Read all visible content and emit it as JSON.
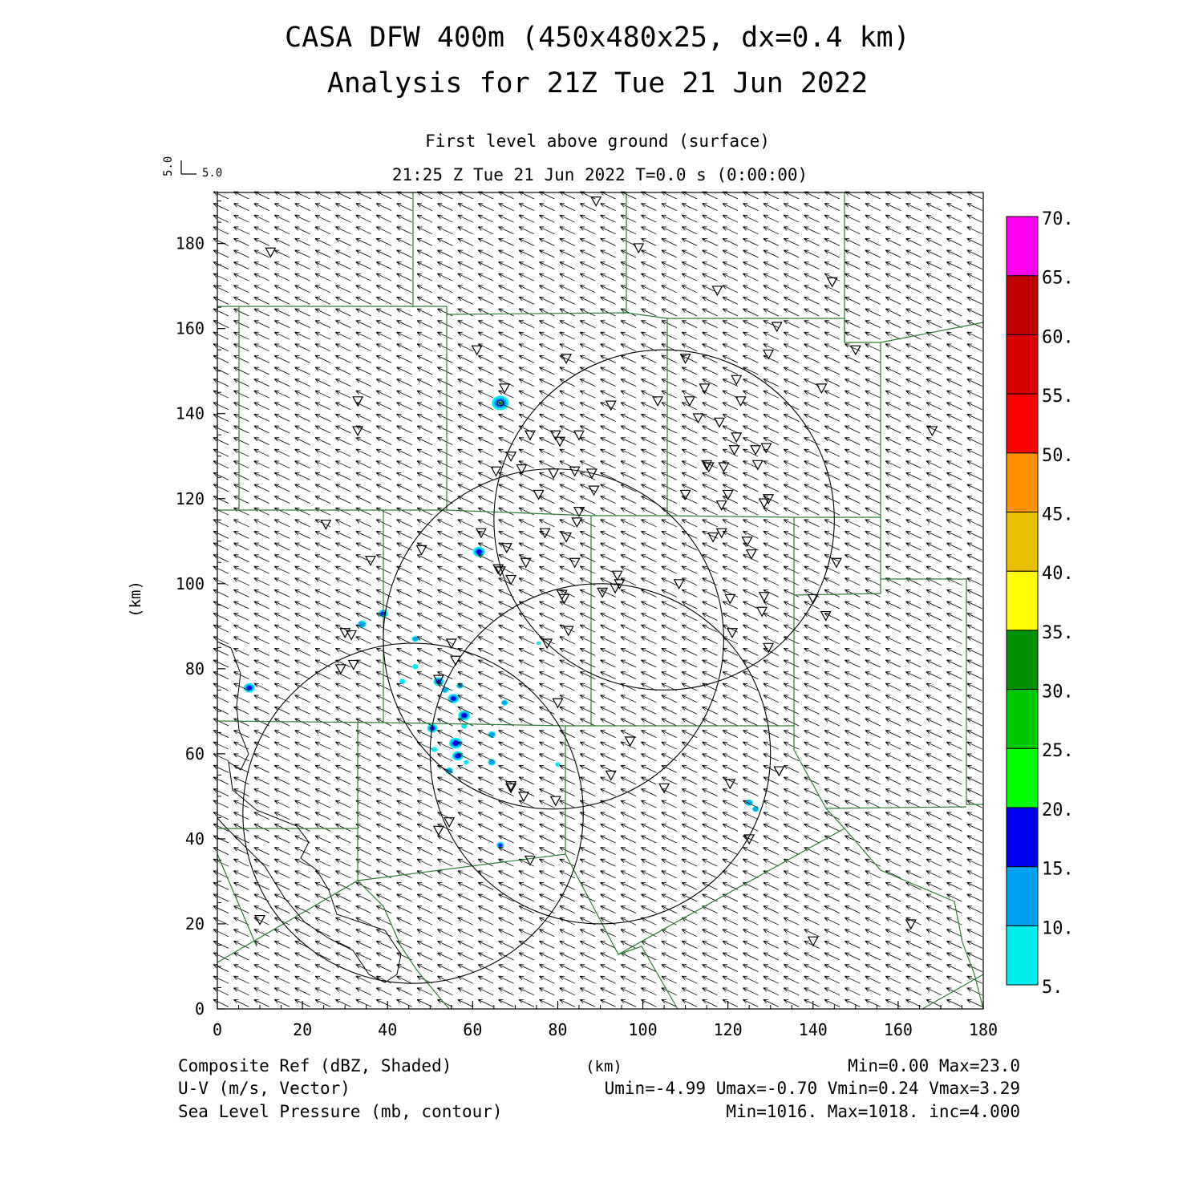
{
  "title": "CASA DFW 400m (450x480x25, dx=0.4 km)",
  "subtitle": "Analysis for 21Z Tue 21 Jun 2022",
  "level_label": "First level above ground (surface)",
  "time_label": "21:25 Z Tue 21 Jun 2022   T=0.0 s (0:00:00)",
  "vector_scale": {
    "u_label": "5.0",
    "v_label": "5.0"
  },
  "footer": {
    "left": [
      "Composite Ref (dBZ, Shaded)",
      "U-V (m/s, Vector)",
      "Sea Level Pressure (mb, contour)"
    ],
    "center": "(km)",
    "right": [
      "Min=0.00 Max=23.0",
      "Umin=-4.99 Umax=-0.70 Vmin=0.24 Vmax=3.29",
      "Min=1016. Max=1018. inc=4.000"
    ]
  },
  "chart_data": {
    "type": "heatmap",
    "xlabel": "(km)",
    "ylabel": "(km)",
    "xlim": [
      0,
      180
    ],
    "ylim": [
      0,
      192
    ],
    "xticks": [
      "0",
      "20",
      "40",
      "60",
      "80",
      "100",
      "120",
      "140",
      "160",
      "180"
    ],
    "yticks": [
      "0",
      "20",
      "40",
      "60",
      "80",
      "100",
      "120",
      "140",
      "160",
      "180"
    ],
    "colorbar": {
      "levels": [
        "5.",
        "10.",
        "15.",
        "20.",
        "25.",
        "30.",
        "35.",
        "40.",
        "45.",
        "50.",
        "55.",
        "60.",
        "65.",
        "70."
      ],
      "colors": [
        "#00eeee",
        "#00a0f0",
        "#0000f0",
        "#00ff00",
        "#00c800",
        "#009000",
        "#ffff00",
        "#e8c000",
        "#ff9000",
        "#ff0000",
        "#d80000",
        "#c00000",
        "#ff00f0"
      ]
    },
    "radar_rings_km": [
      {
        "center": [
          105,
          115
        ],
        "radius": 40
      },
      {
        "center": [
          79,
          87
        ],
        "radius": 40
      },
      {
        "center": [
          46,
          46
        ],
        "radius": 40
      },
      {
        "center": [
          90,
          60
        ],
        "radius": 40
      }
    ],
    "wind_vector": {
      "u": -3.6,
      "v": 1.7
    },
    "echoes": [
      {
        "x": 66.5,
        "y": 142.5,
        "r": 2.0,
        "peak": "#00ff00"
      },
      {
        "x": 61.5,
        "y": 107.5,
        "r": 1.4,
        "peak": "#0000f0"
      },
      {
        "x": 39.0,
        "y": 93.0,
        "r": 1.1,
        "peak": "#0000f0"
      },
      {
        "x": 34.0,
        "y": 90.5,
        "r": 1.0,
        "peak": "#00a0f0"
      },
      {
        "x": 7.5,
        "y": 75.5,
        "r": 1.3,
        "peak": "#0000f0"
      },
      {
        "x": 46.5,
        "y": 87.0,
        "r": 0.8,
        "peak": "#00a0f0"
      },
      {
        "x": 52.0,
        "y": 77.0,
        "r": 1.2,
        "peak": "#0000f0"
      },
      {
        "x": 55.5,
        "y": 73.0,
        "r": 1.3,
        "peak": "#0000f0"
      },
      {
        "x": 58.0,
        "y": 69.0,
        "r": 1.4,
        "peak": "#0000f0"
      },
      {
        "x": 50.5,
        "y": 66.0,
        "r": 1.2,
        "peak": "#0000f0"
      },
      {
        "x": 56.0,
        "y": 62.5,
        "r": 1.5,
        "peak": "#0000f0"
      },
      {
        "x": 56.5,
        "y": 59.5,
        "r": 1.3,
        "peak": "#0000f0"
      },
      {
        "x": 54.5,
        "y": 56.0,
        "r": 0.9,
        "peak": "#00a0f0"
      },
      {
        "x": 64.5,
        "y": 64.5,
        "r": 0.9,
        "peak": "#00a0f0"
      },
      {
        "x": 64.5,
        "y": 58.0,
        "r": 0.9,
        "peak": "#00a0f0"
      },
      {
        "x": 67.5,
        "y": 72.0,
        "r": 0.8,
        "peak": "#00a0f0"
      },
      {
        "x": 53.5,
        "y": 75.0,
        "r": 0.8,
        "peak": "#00a0f0"
      },
      {
        "x": 57.0,
        "y": 76.0,
        "r": 0.8,
        "peak": "#00a0f0"
      },
      {
        "x": 46.5,
        "y": 80.5,
        "r": 0.7,
        "peak": "#00eeee"
      },
      {
        "x": 43.5,
        "y": 77.0,
        "r": 0.7,
        "peak": "#00eeee"
      },
      {
        "x": 58.0,
        "y": 66.5,
        "r": 0.7,
        "peak": "#00eeee"
      },
      {
        "x": 51.0,
        "y": 61.0,
        "r": 0.7,
        "peak": "#00eeee"
      },
      {
        "x": 58.5,
        "y": 58.0,
        "r": 0.6,
        "peak": "#00eeee"
      },
      {
        "x": 80.0,
        "y": 57.5,
        "r": 0.6,
        "peak": "#00eeee"
      },
      {
        "x": 75.5,
        "y": 86.0,
        "r": 0.5,
        "peak": "#00eeee"
      },
      {
        "x": 66.5,
        "y": 38.5,
        "r": 0.9,
        "peak": "#0000f0"
      },
      {
        "x": 125.0,
        "y": 48.5,
        "r": 0.9,
        "peak": "#00a0f0"
      },
      {
        "x": 126.5,
        "y": 47.0,
        "r": 0.8,
        "peak": "#00a0f0"
      }
    ],
    "stations": [
      [
        89,
        190
      ],
      [
        12.5,
        178
      ],
      [
        99,
        179
      ],
      [
        117.5,
        169
      ],
      [
        144.5,
        171
      ],
      [
        131.5,
        160.5
      ],
      [
        150,
        155
      ],
      [
        61,
        155
      ],
      [
        82,
        153
      ],
      [
        110,
        153
      ],
      [
        129.5,
        154
      ],
      [
        67.5,
        146
      ],
      [
        114.5,
        146
      ],
      [
        122,
        148
      ],
      [
        111,
        143
      ],
      [
        142,
        146
      ],
      [
        33,
        143
      ],
      [
        92.5,
        142
      ],
      [
        103.5,
        143
      ],
      [
        123,
        143
      ],
      [
        33,
        136
      ],
      [
        73.5,
        135
      ],
      [
        85,
        135
      ],
      [
        79.5,
        135
      ],
      [
        80.5,
        133.5
      ],
      [
        113,
        139
      ],
      [
        118,
        138
      ],
      [
        122,
        134.5
      ],
      [
        126.5,
        131.5
      ],
      [
        129,
        132
      ],
      [
        168,
        136
      ],
      [
        121.5,
        131.5
      ],
      [
        69,
        130
      ],
      [
        71.5,
        127
      ],
      [
        65.5,
        126.5
      ],
      [
        79,
        126
      ],
      [
        84,
        126.5
      ],
      [
        88,
        126
      ],
      [
        115,
        128
      ],
      [
        115.5,
        127.5
      ],
      [
        119,
        127.5
      ],
      [
        127,
        128
      ],
      [
        88.5,
        122
      ],
      [
        75.5,
        121
      ],
      [
        110,
        121
      ],
      [
        120,
        121
      ],
      [
        129.5,
        120
      ],
      [
        128.5,
        119
      ],
      [
        118.5,
        118.5
      ],
      [
        85,
        117
      ],
      [
        84.5,
        114.5
      ],
      [
        25.5,
        114
      ],
      [
        62,
        112
      ],
      [
        77,
        112
      ],
      [
        82,
        111
      ],
      [
        116.5,
        111
      ],
      [
        118.5,
        112
      ],
      [
        124.5,
        110
      ],
      [
        48,
        108
      ],
      [
        68,
        108.5
      ],
      [
        125.5,
        107
      ],
      [
        36,
        105.5
      ],
      [
        72.5,
        105
      ],
      [
        66,
        103.5
      ],
      [
        66.5,
        103
      ],
      [
        84,
        105
      ],
      [
        94,
        102
      ],
      [
        69,
        101
      ],
      [
        94.5,
        100
      ],
      [
        93.5,
        99
      ],
      [
        108.5,
        100
      ],
      [
        90.5,
        98
      ],
      [
        81,
        97.5
      ],
      [
        81.5,
        96.5
      ],
      [
        128.5,
        97
      ],
      [
        120.5,
        96.5
      ],
      [
        140,
        96.5
      ],
      [
        128,
        93.5
      ],
      [
        143,
        92.5
      ],
      [
        30,
        88.5
      ],
      [
        31.5,
        88
      ],
      [
        82.5,
        89
      ],
      [
        121,
        88.5
      ],
      [
        77.5,
        86
      ],
      [
        55,
        86
      ],
      [
        145.5,
        105
      ],
      [
        129.5,
        85
      ],
      [
        56,
        82
      ],
      [
        29,
        80
      ],
      [
        32,
        81
      ],
      [
        52,
        77.5
      ],
      [
        80,
        72
      ],
      [
        97,
        63
      ],
      [
        92.5,
        55
      ],
      [
        132,
        56
      ],
      [
        72,
        50
      ],
      [
        69,
        52.5
      ],
      [
        69,
        52
      ],
      [
        105,
        52
      ],
      [
        120.5,
        53
      ],
      [
        79.5,
        49
      ],
      [
        54.5,
        44
      ],
      [
        52,
        42
      ],
      [
        125,
        40
      ],
      [
        73.5,
        35
      ],
      [
        10,
        21
      ],
      [
        163,
        20
      ],
      [
        140,
        16
      ]
    ]
  }
}
